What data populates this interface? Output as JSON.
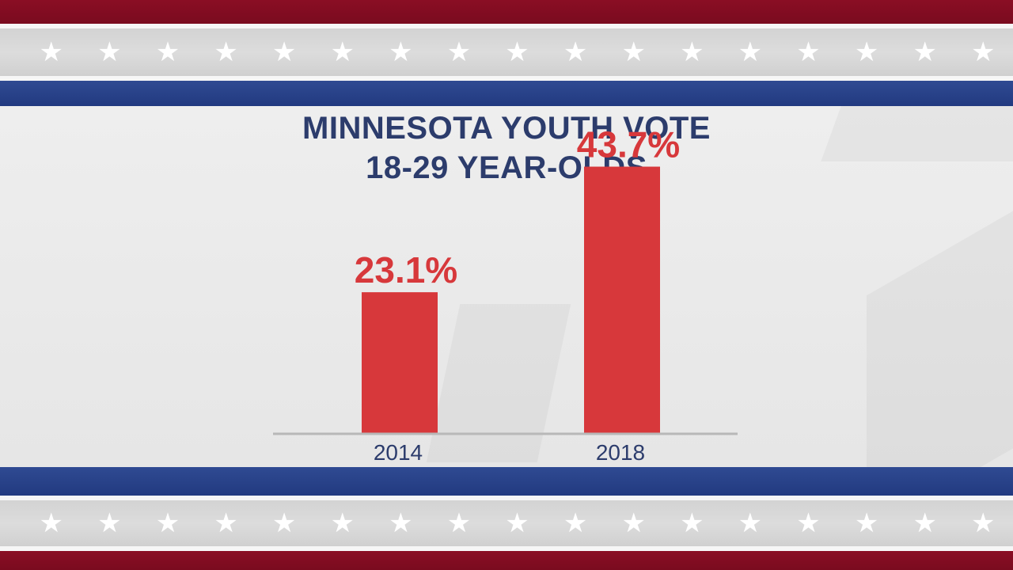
{
  "title": "MINNESOTA YOUTH VOTE",
  "subtitle": "18-29 YEAR-OLDS",
  "colors": {
    "bar": "#d7383b",
    "value_label": "#d7383b",
    "title": "#2c3c6c",
    "axis": "#b8b8b8",
    "tick_label": "#2c3c6c",
    "banner_red": "#7f0c21",
    "banner_blue": "#2a4389",
    "star": "#ffffff"
  },
  "chart_data": {
    "type": "bar",
    "title": "MINNESOTA YOUTH VOTE",
    "subtitle": "18-29 YEAR-OLDS",
    "categories": [
      "2014",
      "2018"
    ],
    "values": [
      23.1,
      43.7
    ],
    "value_labels": [
      "23.1%",
      "43.7%"
    ],
    "xlabel": "",
    "ylabel": "",
    "ylim": [
      0,
      50
    ],
    "grid": false,
    "legend": "none"
  }
}
